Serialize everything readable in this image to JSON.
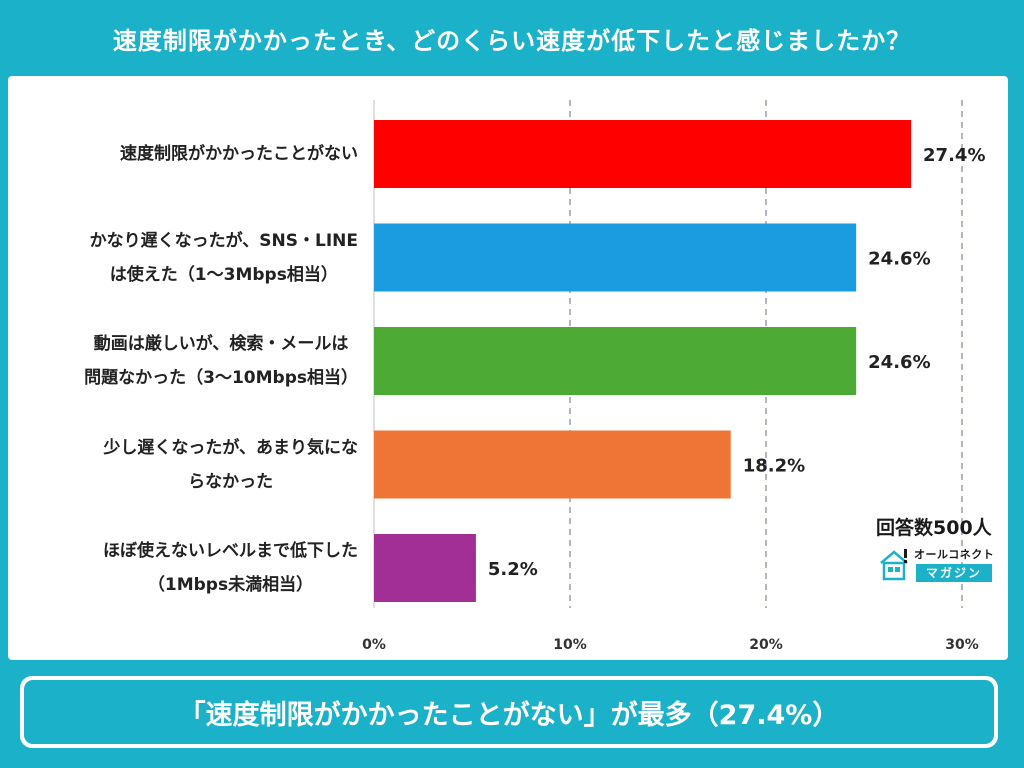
{
  "header": {
    "title": "速度制限がかかったとき、どのくらい速度が低下したと感じましたか？"
  },
  "colors": {
    "brand": "#1bb1c9",
    "bar_colors": [
      "#ff0000",
      "#1b9be0",
      "#4caa35",
      "#ef7537",
      "#a12f95"
    ]
  },
  "chart_data": {
    "type": "bar",
    "orientation": "horizontal",
    "title": "速度制限がかかったとき、どのくらい速度が低下したと感じましたか？",
    "xlabel": "",
    "ylabel": "",
    "xlim": [
      0,
      30
    ],
    "ticks": [
      0,
      10,
      20,
      30
    ],
    "tick_labels": [
      "0%",
      "10%",
      "20%",
      "30%"
    ],
    "grid": "vertical dashed",
    "categories": [
      [
        "速度制限がかかったことがない"
      ],
      [
        "かなり遅くなったが、SNS・LINE",
        "は使えた（1〜3Mbps相当）"
      ],
      [
        "動画は厳しいが、検索・メールは",
        "問題なかった（3〜10Mbps相当）"
      ],
      [
        "少し遅くなったが、あまり気にな",
        "らなかった"
      ],
      [
        "ほぼ使えないレベルまで低下した",
        "（1Mbps未満相当）"
      ]
    ],
    "values": [
      27.4,
      24.6,
      24.6,
      18.2,
      5.2
    ],
    "value_labels": [
      "27.4%",
      "24.6%",
      "24.6%",
      "18.2%",
      "5.2%"
    ]
  },
  "respondents": "回答数500人",
  "logo": {
    "top": "オールコネクト",
    "bottom": "マガジン",
    "icon": "house-icon"
  },
  "banner": {
    "text": "「速度制限がかかったことがない」が最多（27.4%）"
  }
}
